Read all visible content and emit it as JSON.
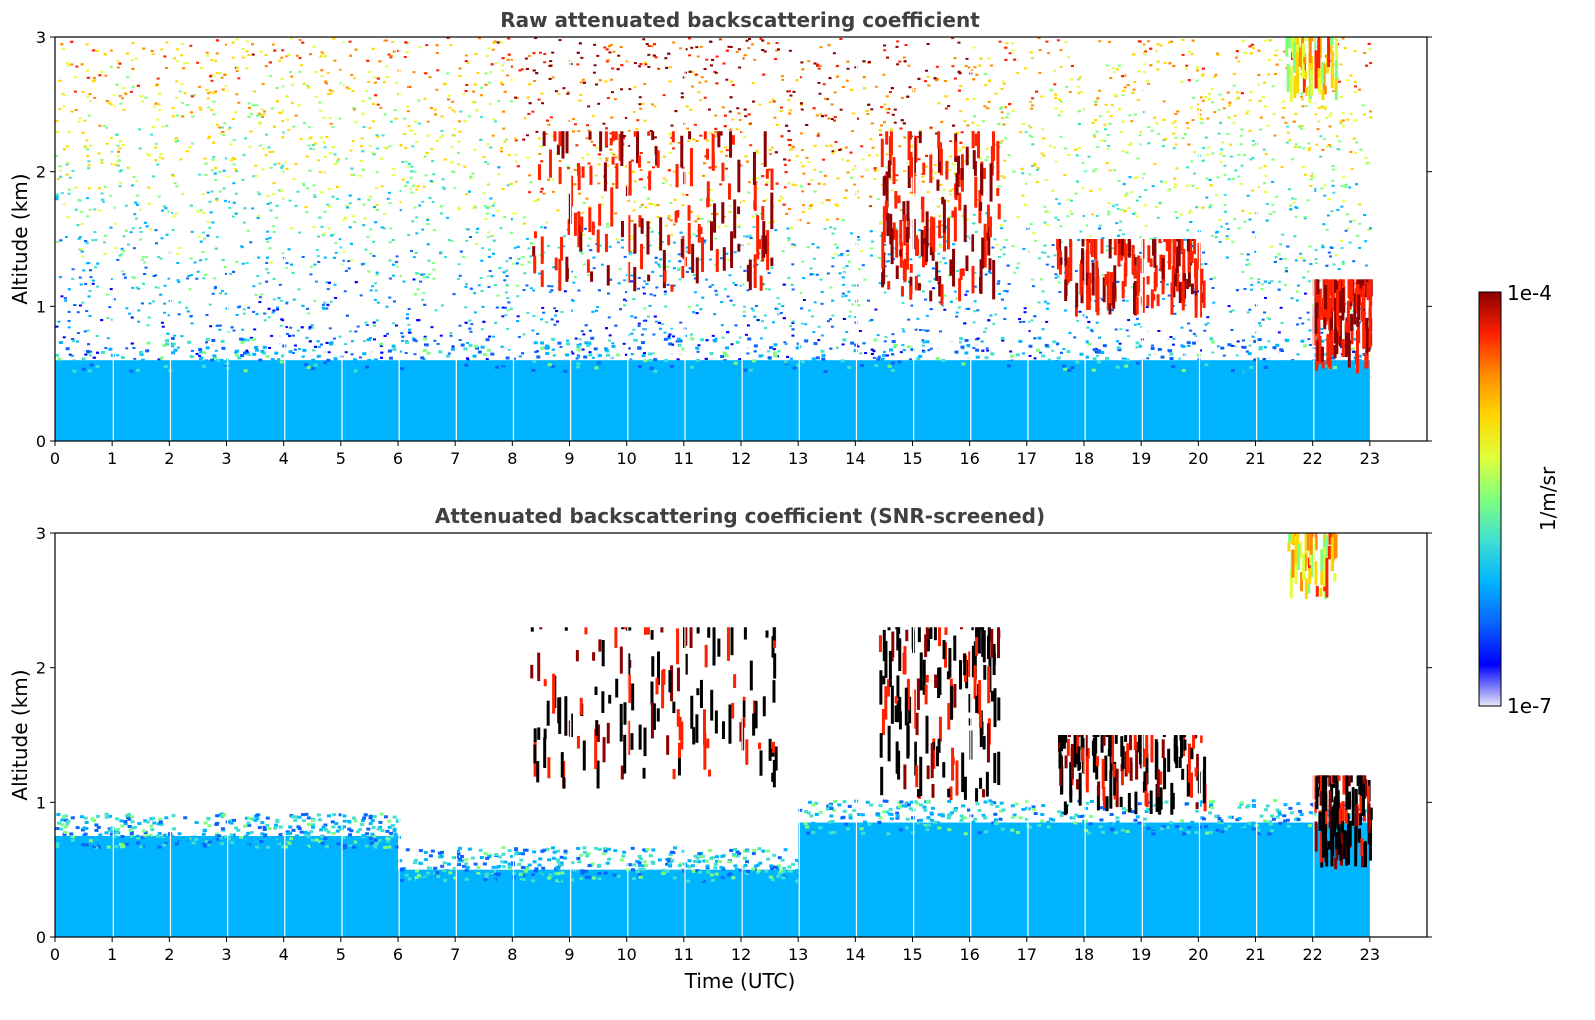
{
  "chart_data": [
    {
      "type": "heatmap",
      "title": "Raw attenuated backscattering coefficient",
      "xlabel": "",
      "ylabel": "Altitude (km)",
      "xlim": [
        0,
        24
      ],
      "ylim": [
        0,
        3
      ],
      "xticks": [
        "0",
        "1",
        "2",
        "3",
        "4",
        "5",
        "6",
        "7",
        "8",
        "9",
        "10",
        "11",
        "12",
        "13",
        "14",
        "15",
        "16",
        "17",
        "18",
        "19",
        "20",
        "21",
        "22",
        "23"
      ],
      "yticks": [
        "0",
        "1",
        "2",
        "3"
      ],
      "data_time_range": [
        0,
        23
      ],
      "features": [
        {
          "kind": "noise-background",
          "altitude_range": [
            0,
            3
          ]
        },
        {
          "kind": "surface-layer",
          "altitude_range": [
            0,
            0.6
          ],
          "level": "1e-6"
        },
        {
          "kind": "cloud-cluster",
          "time_range": [
            8.3,
            12.6
          ],
          "altitude_range": [
            1.1,
            2.3
          ],
          "level": "1e-4"
        },
        {
          "kind": "cloud-cluster",
          "time_range": [
            14.4,
            16.5
          ],
          "altitude_range": [
            1.0,
            2.3
          ],
          "level": "1e-4"
        },
        {
          "kind": "cloud-cluster",
          "time_range": [
            17.5,
            20.1
          ],
          "altitude_range": [
            0.9,
            1.5
          ],
          "level": "1e-4"
        },
        {
          "kind": "cloud-cluster",
          "time_range": [
            22.0,
            23.0
          ],
          "altitude_range": [
            0.5,
            1.2
          ],
          "level": "1e-4"
        },
        {
          "kind": "high-layer",
          "time_range": [
            21.5,
            22.4
          ],
          "altitude_range": [
            2.5,
            3.0
          ],
          "level": "5e-5"
        }
      ]
    },
    {
      "type": "heatmap",
      "title": "Attenuated backscattering coefficient (SNR-screened)",
      "xlabel": "Time (UTC)",
      "ylabel": "Altitude (km)",
      "xlim": [
        0,
        24
      ],
      "ylim": [
        0,
        3
      ],
      "xticks": [
        "0",
        "1",
        "2",
        "3",
        "4",
        "5",
        "6",
        "7",
        "8",
        "9",
        "10",
        "11",
        "12",
        "13",
        "14",
        "15",
        "16",
        "17",
        "18",
        "19",
        "20",
        "21",
        "22",
        "23"
      ],
      "yticks": [
        "0",
        "1",
        "2",
        "3"
      ],
      "data_time_range": [
        0,
        23
      ],
      "features": [
        {
          "kind": "boundary-layer",
          "time_range": [
            0,
            6
          ],
          "altitude_range": [
            0,
            0.75
          ],
          "level": "1e-6"
        },
        {
          "kind": "boundary-layer",
          "time_range": [
            6,
            13
          ],
          "altitude_range": [
            0,
            0.5
          ],
          "level": "1e-6"
        },
        {
          "kind": "boundary-layer",
          "time_range": [
            13,
            23
          ],
          "altitude_range": [
            0,
            0.85
          ],
          "level": "1e-6"
        },
        {
          "kind": "cloud-cluster",
          "time_range": [
            8.3,
            12.6
          ],
          "altitude_range": [
            1.1,
            2.3
          ],
          "level": "1e-4"
        },
        {
          "kind": "cloud-cluster",
          "time_range": [
            14.4,
            16.5
          ],
          "altitude_range": [
            1.0,
            2.3
          ],
          "level": "1e-4"
        },
        {
          "kind": "cloud-cluster",
          "time_range": [
            17.5,
            20.1
          ],
          "altitude_range": [
            0.9,
            1.5
          ],
          "level": "1e-4"
        },
        {
          "kind": "cloud-cluster",
          "time_range": [
            22.0,
            23.0
          ],
          "altitude_range": [
            0.5,
            1.2
          ],
          "level": "1e-4"
        },
        {
          "kind": "high-layer",
          "time_range": [
            21.5,
            22.4
          ],
          "altitude_range": [
            2.5,
            3.0
          ],
          "level": "5e-5"
        }
      ]
    }
  ],
  "colorbar": {
    "label": "1/m/sr",
    "max_label": "1e-4",
    "min_label": "1e-7",
    "scale": "log",
    "range": [
      1e-07,
      0.0001
    ],
    "colors": [
      "#e6e6fa",
      "#0000ff",
      "#0a64ff",
      "#00b4ff",
      "#40e0d0",
      "#7fff7f",
      "#e0ff3c",
      "#ffd700",
      "#ff8c00",
      "#ff2000",
      "#8b0000"
    ]
  }
}
